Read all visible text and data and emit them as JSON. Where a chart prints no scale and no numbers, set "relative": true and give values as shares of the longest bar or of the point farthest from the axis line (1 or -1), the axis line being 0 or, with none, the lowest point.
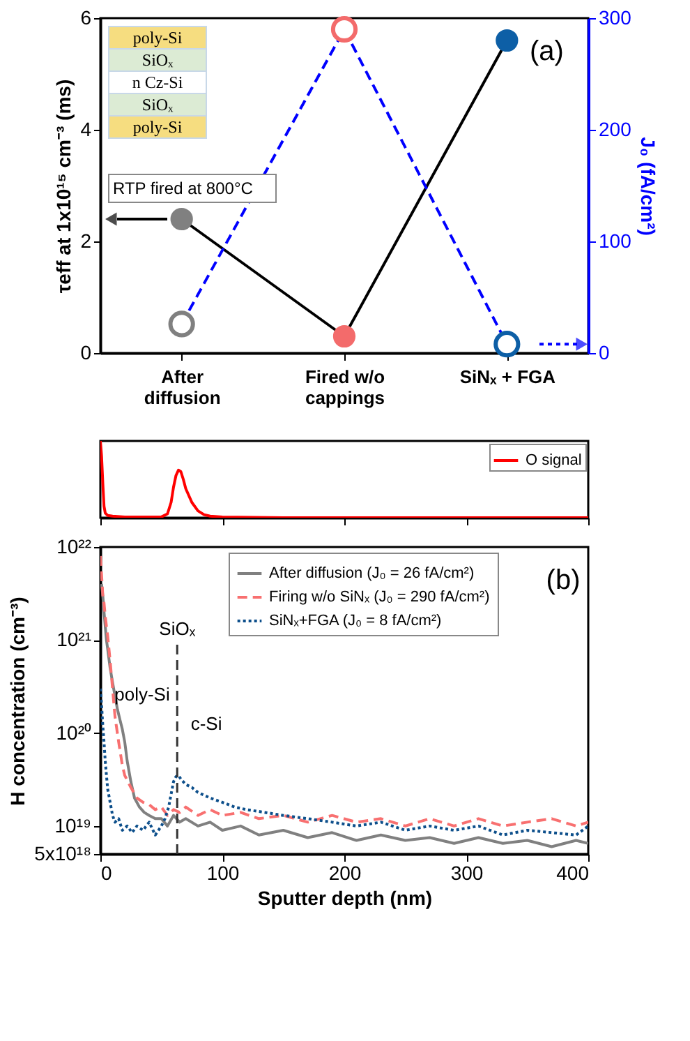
{
  "chart_data": [
    {
      "type": "line",
      "categories": [
        "After\ndiffusion",
        "Fired w/o\ncappings",
        "SiNₓ + FGA"
      ],
      "ylabel": "τeff at 1x10¹⁵ cm⁻³ (ms)",
      "y2label": "J₀ (fA/cm²)",
      "ylim": [
        0,
        6
      ],
      "yticks": [
        0,
        2,
        4,
        6
      ],
      "y2lim": [
        0,
        300
      ],
      "y2ticks": [
        0,
        100,
        200,
        300
      ],
      "marker": "circle",
      "annotations": [
        "(a)",
        "RTP fired at 800°C",
        "poly-Si",
        "SiOₓ",
        "n Cz-Si",
        "SiOₓ",
        "poly-Si"
      ],
      "series": [
        {
          "color": "#000000",
          "colors": [
            "#808080",
            "#f36b6b",
            "#0d5fa6"
          ],
          "line_style": "solid",
          "values": [
            2.4,
            0.3,
            5.6
          ]
        },
        {
          "color": "#0000ff",
          "colors": [
            "#808080",
            "#f36b6b",
            "#0d5fa6"
          ],
          "line_style": "dashed",
          "axis": "y2",
          "values": [
            26,
            290,
            8
          ]
        }
      ]
    },
    {
      "type": "line",
      "relative": true,
      "xlim": [
        0,
        400
      ],
      "xticks": [
        0,
        100,
        200,
        300,
        400
      ],
      "tick_labels": false,
      "legend": "top right",
      "x": [
        0,
        1,
        2,
        3,
        4,
        6,
        10,
        20,
        40,
        50,
        55,
        58,
        60,
        62,
        64,
        66,
        68,
        70,
        75,
        80,
        85,
        90,
        100,
        150,
        200,
        400
      ],
      "series": [
        {
          "name": "O signal",
          "color": "#ff0000",
          "line_style": "solid",
          "values": [
            1,
            0.8,
            0.45,
            0.15,
            0.06,
            0.03,
            0.02,
            0.01,
            0.01,
            0.01,
            0.05,
            0.2,
            0.4,
            0.55,
            0.62,
            0.6,
            0.5,
            0.38,
            0.2,
            0.09,
            0.04,
            0.02,
            0.01,
            0,
            0,
            0
          ]
        }
      ]
    },
    {
      "type": "line",
      "log": true,
      "xlabel": "Sputter depth (nm)",
      "ylabel": "H concentration (cm⁻³)",
      "xlim": [
        0,
        400
      ],
      "xticks": [
        0,
        100,
        200,
        300,
        400
      ],
      "ylim": [
        5e+18,
        1e+22
      ],
      "yticks": [
        {
          "value": 5e+18,
          "label": "5x10¹⁸"
        },
        {
          "value": 1e+19,
          "label": "10¹⁹"
        },
        {
          "value": 1e+20,
          "label": "10²⁰"
        },
        {
          "value": 1e+21,
          "label": "10²¹"
        },
        {
          "value": 1e+22,
          "label": "10²²"
        }
      ],
      "legend": "top",
      "annotations": [
        "(b)",
        "poly-Si",
        "c-Si"
      ],
      "ref_lines": [
        {
          "axis": "x",
          "value": 63,
          "label": "SiOₓ",
          "color": "#333333",
          "line_style": "dashed"
        }
      ],
      "series": [
        {
          "name": "After diffusion (J₀ = 26 fA/cm²)",
          "color": "#808080",
          "line_style": "solid",
          "x": [
            1,
            2,
            3,
            4,
            5,
            6,
            8,
            10,
            12,
            14,
            16,
            18,
            20,
            22,
            25,
            28,
            32,
            36,
            40,
            45,
            50,
            55,
            60,
            65,
            70,
            80,
            90,
            100,
            115,
            130,
            150,
            170,
            190,
            210,
            230,
            250,
            270,
            290,
            310,
            330,
            350,
            370,
            390,
            400
          ],
          "values": [
            4e+21,
            3e+21,
            2e+21,
            1.4e+21,
            1e+21,
            8e+20,
            5e+20,
            3.5e+20,
            2.5e+20,
            1.8e+20,
            1.4e+20,
            1.1e+20,
            8e+19,
            5e+19,
            3e+19,
            2e+19,
            1.6e+19,
            1.4e+19,
            1.3e+19,
            1.2e+19,
            1.2e+19,
            1e+19,
            1.3e+19,
            1.1e+19,
            1.2e+19,
            1e+19,
            1.1e+19,
            9e+18,
            1e+19,
            8e+18,
            9e+18,
            7.5e+18,
            8.5e+18,
            7e+18,
            8e+18,
            7e+18,
            7.5e+18,
            6.5e+18,
            7.5e+18,
            6.5e+18,
            7e+18,
            6e+18,
            7e+18,
            6.5e+18
          ]
        },
        {
          "name": "Firing w/o SiNₓ (J₀ = 290 fA/cm²)",
          "color": "#f87070",
          "line_style": "dashed",
          "x": [
            0,
            1,
            2,
            3,
            4,
            5,
            6,
            8,
            10,
            12,
            15,
            18,
            20,
            25,
            30,
            35,
            40,
            45,
            50,
            55,
            60,
            65,
            70,
            80,
            90,
            100,
            115,
            130,
            150,
            170,
            190,
            210,
            230,
            250,
            270,
            290,
            310,
            330,
            350,
            370,
            390,
            400
          ],
          "values": [
            8e+21,
            5e+21,
            3e+21,
            2.5e+21,
            1.8e+21,
            1.4e+21,
            1.1e+21,
            6e+20,
            3e+20,
            1.5e+20,
            8e+19,
            4.5e+19,
            3.5e+19,
            2.6e+19,
            2e+19,
            1.8e+19,
            1.7e+19,
            1.5e+19,
            1.6e+19,
            1.3e+19,
            1.5e+19,
            1.4e+19,
            1.6e+19,
            1.3e+19,
            1.5e+19,
            1.3e+19,
            1.4e+19,
            1.2e+19,
            1.3e+19,
            1.1e+19,
            1.3e+19,
            1.1e+19,
            1.2e+19,
            1e+19,
            1.2e+19,
            1e+19,
            1.2e+19,
            1e+19,
            1.1e+19,
            1.2e+19,
            1e+19,
            1.1e+19
          ]
        },
        {
          "name": "SiNₓ+FGA (J₀ = 8 fA/cm²)",
          "color": "#0d4f8b",
          "line_style": "dotted",
          "x": [
            0,
            1,
            2,
            3,
            4,
            5,
            6,
            8,
            10,
            12,
            15,
            18,
            22,
            26,
            30,
            35,
            40,
            45,
            50,
            53,
            56,
            58,
            60,
            62,
            64,
            66,
            70,
            75,
            80,
            90,
            100,
            110,
            120,
            135,
            150,
            170,
            190,
            210,
            230,
            250,
            270,
            290,
            310,
            330,
            350,
            370,
            390,
            400
          ],
          "values": [
            3e+20,
            2e+20,
            1.2e+20,
            8e+19,
            5e+19,
            3.5e+19,
            2.5e+19,
            1.8e+19,
            1.3e+19,
            1.1e+19,
            1.2e+19,
            9e+18,
            1e+19,
            8.5e+18,
            1e+19,
            9e+18,
            1.1e+19,
            8e+18,
            1e+19,
            1.2e+19,
            1.6e+19,
            2.2e+19,
            3e+19,
            3.4e+19,
            3.5e+19,
            3.2e+19,
            2.8e+19,
            2.6e+19,
            2.3e+19,
            2e+19,
            1.8e+19,
            1.6e+19,
            1.5e+19,
            1.4e+19,
            1.3e+19,
            1.2e+19,
            1.1e+19,
            1e+19,
            1.1e+19,
            9e+18,
            1e+19,
            9e+18,
            1e+19,
            8e+18,
            9e+18,
            8.5e+18,
            8e+18,
            1e+19
          ]
        }
      ]
    }
  ]
}
